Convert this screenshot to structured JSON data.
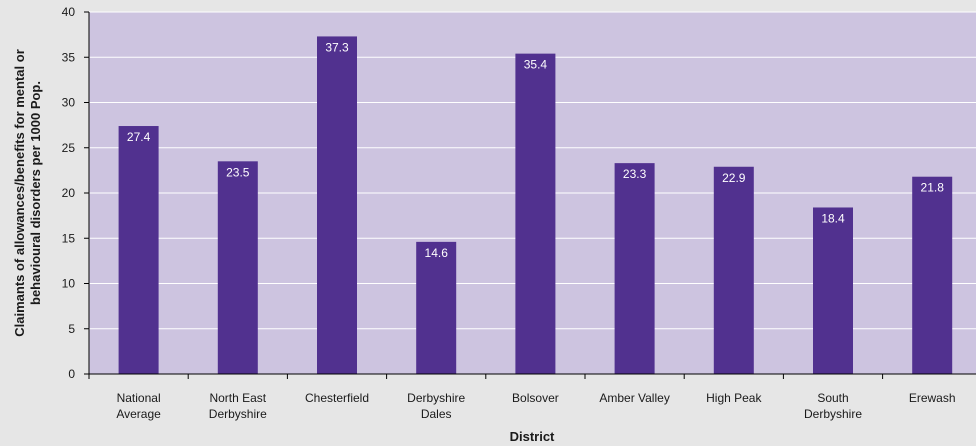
{
  "chart_data": {
    "type": "bar",
    "title": "",
    "xlabel": "District",
    "ylabel": "Claimants of allowances/benefits for mental or behavioural disorders per 1000 Pop.",
    "ylabel_lines": [
      "Claimants of allowances/benefits for mental or",
      "behavioural disorders per 1000 Pop."
    ],
    "categories": [
      "National Average",
      "North East Derbyshire",
      "Chesterfield",
      "Derbyshire Dales",
      "Bolsover",
      "Amber Valley",
      "High Peak",
      "South Derbyshire",
      "Erewash"
    ],
    "category_lines": [
      [
        "National",
        "Average"
      ],
      [
        "North East",
        "Derbyshire"
      ],
      [
        "Chesterfield"
      ],
      [
        "Derbyshire",
        "Dales"
      ],
      [
        "Bolsover"
      ],
      [
        "Amber Valley"
      ],
      [
        "High Peak"
      ],
      [
        "South",
        "Derbyshire"
      ],
      [
        "Erewash"
      ]
    ],
    "values": [
      27.4,
      23.5,
      37.3,
      14.6,
      35.4,
      23.3,
      22.9,
      18.4,
      21.8
    ],
    "ylim": [
      0,
      40
    ],
    "yticks": [
      0,
      5,
      10,
      15,
      20,
      25,
      30,
      35,
      40
    ],
    "grid": true,
    "legend": "none",
    "colors": {
      "bar": "#51318f",
      "plot_background": "#cdc4e0",
      "page_background": "#e6e6e6",
      "gridline": "#ffffff",
      "data_label": "#ffffff"
    }
  }
}
